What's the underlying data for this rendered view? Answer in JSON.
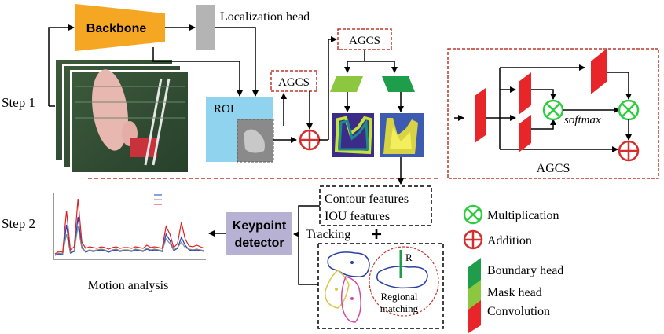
{
  "steps": {
    "step1": "Step 1",
    "step2": "Step 2"
  },
  "blocks": {
    "backbone": "Backbone",
    "localization_head": "Localization head",
    "roi": "ROI",
    "agcs_left": "AGCS",
    "agcs_top": "AGCS",
    "agcs_module": "AGCS",
    "softmax": "softmax",
    "contour_features": "Contour features",
    "iou_features": "IOU features",
    "tracking": "Tracking",
    "keypoint_detector_line1": "Keypoint",
    "keypoint_detector_line2": "detector",
    "regional_matching_line1": "Regional",
    "regional_matching_line2": "matching",
    "radius_label": "R",
    "motion_analysis": "Motion analysis",
    "plus_symbol": "+"
  },
  "legend": {
    "multiplication": "Multiplication",
    "addition": "Addition",
    "boundary_head": "Boundary head",
    "mask_head": "Mask head",
    "convolution": "Convolution"
  },
  "colors": {
    "backbone": "#f5a623",
    "localization_head": "#b4b4b4",
    "roi_bg": "#8fd3ef",
    "agcs_border": "#c0392b",
    "addition_red": "#d32f2f",
    "multiplication_green": "#2ecc40",
    "boundary_head": "#1e9e4a",
    "mask_head": "#8dc63f",
    "convolution": "#e8262a",
    "keypoint_detector": "#b7b1d3",
    "motion_line_blue": "#1f3fbf",
    "motion_line_red": "#e02020"
  },
  "chart_data": {
    "type": "line",
    "title": "",
    "xlabel": "",
    "ylabel": "",
    "legend_placement": "top-right",
    "series": [
      {
        "color": "blue",
        "values": [
          3,
          5,
          4,
          42,
          6,
          8,
          52,
          14,
          7,
          9,
          8,
          9,
          10,
          9,
          7,
          9,
          10,
          8,
          9,
          9,
          8,
          10,
          9,
          8,
          11,
          9,
          10,
          9,
          8,
          30,
          22,
          9,
          12,
          26,
          16,
          10,
          9,
          10,
          9,
          8
        ]
      },
      {
        "color": "gray",
        "values": [
          4,
          6,
          5,
          30,
          7,
          9,
          40,
          12,
          8,
          10,
          9,
          10,
          11,
          10,
          8,
          10,
          11,
          9,
          10,
          10,
          9,
          11,
          10,
          9,
          12,
          10,
          11,
          10,
          9,
          24,
          18,
          10,
          13,
          20,
          13,
          11,
          10,
          11,
          10,
          9
        ]
      },
      {
        "color": "red",
        "values": [
          5,
          8,
          7,
          60,
          10,
          14,
          75,
          20,
          12,
          14,
          13,
          12,
          14,
          13,
          11,
          13,
          14,
          12,
          13,
          13,
          12,
          14,
          13,
          12,
          16,
          13,
          14,
          13,
          12,
          40,
          30,
          13,
          18,
          45,
          24,
          15,
          14,
          16,
          14,
          12
        ]
      }
    ]
  }
}
